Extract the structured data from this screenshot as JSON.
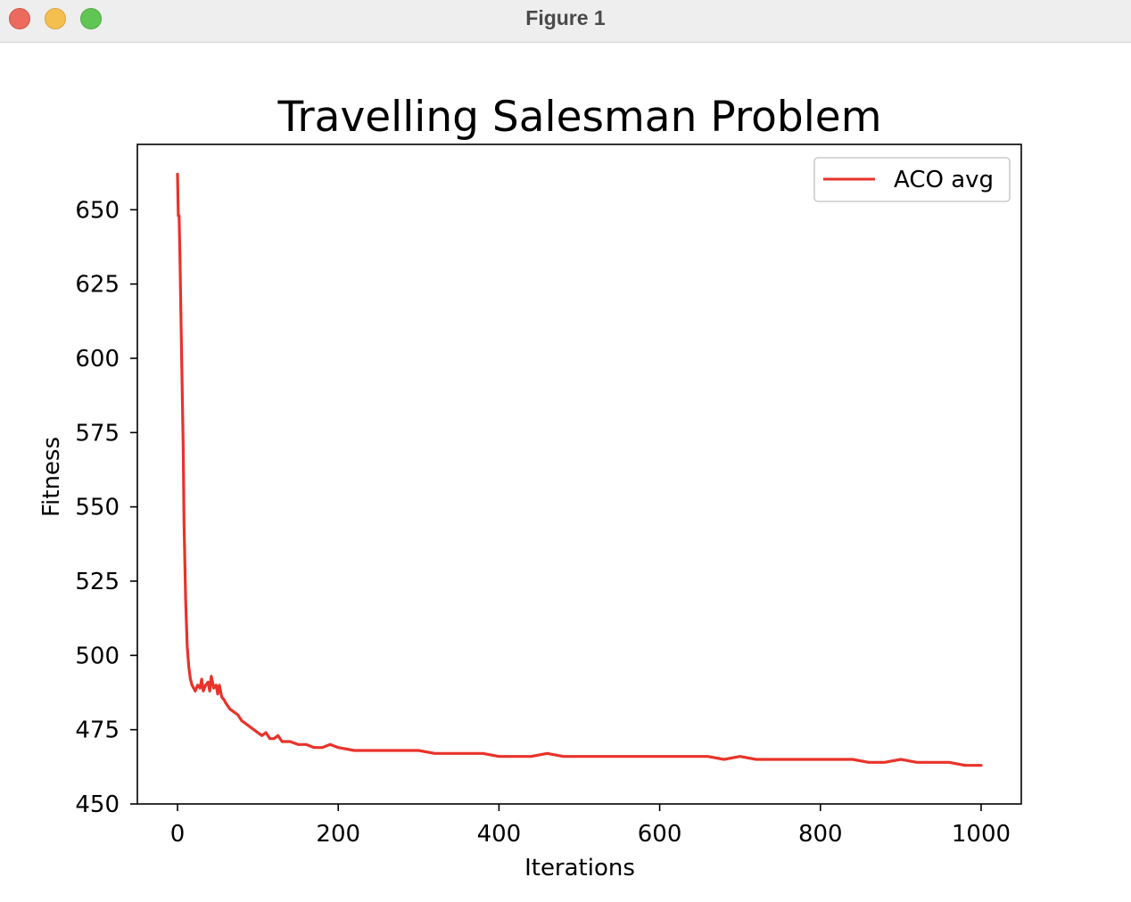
{
  "window": {
    "title": "Figure 1"
  },
  "chart_data": {
    "type": "line",
    "title": "Travelling Salesman Problem",
    "xlabel": "Iterations",
    "ylabel": "Fitness",
    "xlim": [
      -50,
      1050
    ],
    "ylim": [
      450,
      672
    ],
    "xticks": [
      0,
      200,
      400,
      600,
      800,
      1000
    ],
    "yticks": [
      450,
      475,
      500,
      525,
      550,
      575,
      600,
      625,
      650
    ],
    "grid": false,
    "legend": {
      "position": "upper-right",
      "entries": [
        "ACO avg"
      ]
    },
    "series": [
      {
        "name": "ACO avg",
        "color": "#e8332a",
        "x": [
          0,
          1,
          2,
          3,
          5,
          7,
          8,
          10,
          12,
          14,
          16,
          18,
          20,
          22,
          25,
          28,
          30,
          32,
          35,
          38,
          40,
          42,
          45,
          48,
          50,
          52,
          55,
          58,
          60,
          65,
          70,
          75,
          80,
          85,
          90,
          95,
          100,
          105,
          110,
          115,
          120,
          125,
          130,
          140,
          150,
          160,
          170,
          180,
          190,
          200,
          220,
          240,
          260,
          280,
          300,
          320,
          340,
          360,
          380,
          400,
          420,
          440,
          460,
          480,
          500,
          520,
          540,
          560,
          580,
          600,
          620,
          640,
          660,
          680,
          700,
          720,
          740,
          760,
          780,
          800,
          820,
          840,
          860,
          880,
          900,
          920,
          940,
          960,
          980,
          990,
          995,
          1000
        ],
        "y": [
          662,
          648,
          648,
          635,
          601,
          570,
          545,
          519,
          503,
          496,
          492,
          490,
          489,
          488,
          490,
          489,
          492,
          488,
          490,
          491,
          488,
          493,
          489,
          490,
          487,
          490,
          486,
          485,
          484,
          482,
          481,
          480,
          478,
          477,
          476,
          475,
          474,
          473,
          474,
          472,
          472,
          473,
          471,
          471,
          470,
          470,
          469,
          469,
          470,
          469,
          468,
          468,
          468,
          468,
          468,
          467,
          467,
          467,
          467,
          466,
          466,
          466,
          467,
          466,
          466,
          466,
          466,
          466,
          466,
          466,
          466,
          466,
          466,
          465,
          466,
          465,
          465,
          465,
          465,
          465,
          465,
          465,
          464,
          464,
          465,
          464,
          464,
          464,
          463,
          463,
          463,
          463
        ]
      }
    ]
  }
}
